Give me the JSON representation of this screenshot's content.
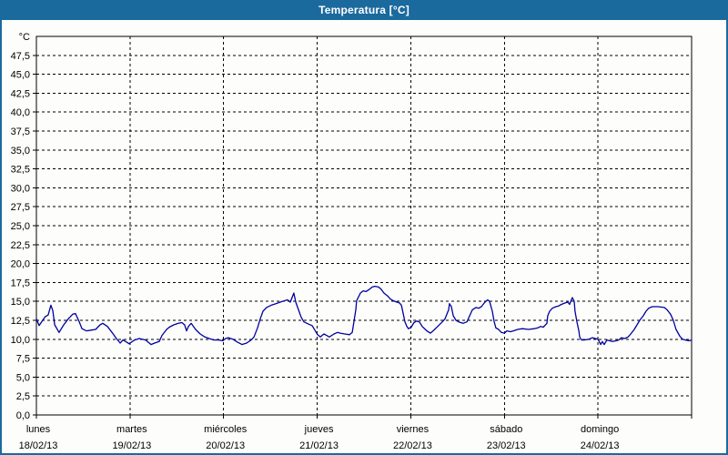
{
  "window": {
    "title": "Temperatura [°C]"
  },
  "colors": {
    "frame": "#1b6a9e",
    "title_text": "#ffffff",
    "plot_background": "#fdfefb",
    "grid": "#000000",
    "series_line": "#0000a0",
    "label_text": "#000000"
  },
  "chart_data": {
    "type": "line",
    "title": "Temperatura [°C]",
    "grid": "dashed",
    "legend": "none",
    "y_axis": {
      "unit_label": "°C",
      "min": 0,
      "max": 50,
      "tick_step": 2.5,
      "tick_labels": [
        "0,0",
        "2,5",
        "5,0",
        "7,5",
        "10,0",
        "12,5",
        "15,0",
        "17,5",
        "20,0",
        "22,5",
        "25,0",
        "27,5",
        "30,0",
        "32,5",
        "35,0",
        "37,5",
        "40,0",
        "42,5",
        "45,0",
        "47,5"
      ]
    },
    "x_axis": {
      "hours_total": 168,
      "days": [
        {
          "name": "lunes",
          "date": "18/02/13"
        },
        {
          "name": "martes",
          "date": "19/02/13"
        },
        {
          "name": "miércoles",
          "date": "20/02/13"
        },
        {
          "name": "jueves",
          "date": "21/02/13"
        },
        {
          "name": "viernes",
          "date": "22/02/13"
        },
        {
          "name": "sábado",
          "date": "23/02/13"
        },
        {
          "name": "domingo",
          "date": "24/02/13"
        }
      ]
    },
    "series": [
      {
        "name": "Temperatura",
        "unit": "°C",
        "points_hours_value": [
          [
            0,
            12.7
          ],
          [
            0.7,
            11.8
          ],
          [
            1.6,
            12.5
          ],
          [
            2.3,
            13.0
          ],
          [
            3.0,
            13.2
          ],
          [
            3.7,
            14.5
          ],
          [
            4.2,
            13.8
          ],
          [
            4.7,
            11.9
          ],
          [
            5.8,
            10.9
          ],
          [
            7.0,
            11.9
          ],
          [
            8.2,
            12.7
          ],
          [
            9.3,
            13.3
          ],
          [
            10.0,
            13.4
          ],
          [
            11.0,
            12.3
          ],
          [
            11.7,
            11.4
          ],
          [
            12.8,
            11.1
          ],
          [
            14.0,
            11.2
          ],
          [
            15.2,
            11.3
          ],
          [
            16.3,
            11.9
          ],
          [
            17.0,
            12.1
          ],
          [
            18.2,
            11.7
          ],
          [
            19.4,
            10.9
          ],
          [
            20.5,
            10.1
          ],
          [
            21.5,
            9.5
          ],
          [
            22.2,
            9.9
          ],
          [
            22.9,
            9.7
          ],
          [
            23.8,
            9.4
          ],
          [
            24.0,
            9.5
          ],
          [
            25.2,
            9.9
          ],
          [
            26.4,
            10.1
          ],
          [
            28.0,
            9.9
          ],
          [
            29.4,
            9.3
          ],
          [
            30.3,
            9.5
          ],
          [
            31.5,
            9.7
          ],
          [
            32.2,
            10.5
          ],
          [
            33.4,
            11.3
          ],
          [
            34.1,
            11.6
          ],
          [
            35.2,
            11.9
          ],
          [
            36.4,
            12.1
          ],
          [
            37.3,
            12.2
          ],
          [
            38.0,
            11.9
          ],
          [
            38.5,
            11.1
          ],
          [
            39.0,
            11.7
          ],
          [
            39.7,
            12.1
          ],
          [
            40.8,
            11.3
          ],
          [
            42.0,
            10.7
          ],
          [
            43.2,
            10.3
          ],
          [
            44.3,
            10.1
          ],
          [
            45.5,
            9.9
          ],
          [
            46.7,
            9.9
          ],
          [
            47.8,
            9.8
          ],
          [
            48.5,
            10.1
          ],
          [
            49.2,
            10.2
          ],
          [
            50.4,
            10.0
          ],
          [
            51.6,
            9.6
          ],
          [
            52.7,
            9.3
          ],
          [
            53.9,
            9.5
          ],
          [
            55.1,
            9.9
          ],
          [
            55.8,
            10.3
          ],
          [
            56.7,
            11.5
          ],
          [
            57.4,
            12.7
          ],
          [
            58.1,
            13.7
          ],
          [
            59.0,
            14.2
          ],
          [
            60.2,
            14.5
          ],
          [
            61.4,
            14.7
          ],
          [
            62.5,
            14.9
          ],
          [
            63.7,
            15.1
          ],
          [
            64.4,
            15.2
          ],
          [
            65.1,
            14.9
          ],
          [
            66.0,
            16.1
          ],
          [
            66.5,
            14.9
          ],
          [
            67.2,
            13.9
          ],
          [
            67.9,
            12.9
          ],
          [
            68.6,
            12.3
          ],
          [
            69.8,
            12.0
          ],
          [
            70.7,
            11.8
          ],
          [
            71.4,
            11.2
          ],
          [
            72.1,
            10.6
          ],
          [
            72.8,
            10.3
          ],
          [
            73.7,
            10.7
          ],
          [
            74.4,
            10.5
          ],
          [
            75.1,
            10.3
          ],
          [
            76.3,
            10.7
          ],
          [
            77.2,
            10.9
          ],
          [
            77.9,
            10.8
          ],
          [
            79.1,
            10.7
          ],
          [
            80.3,
            10.6
          ],
          [
            81.0,
            10.9
          ],
          [
            81.4,
            12.3
          ],
          [
            81.9,
            13.9
          ],
          [
            82.1,
            15.1
          ],
          [
            83.1,
            16.1
          ],
          [
            83.8,
            16.4
          ],
          [
            84.5,
            16.3
          ],
          [
            85.4,
            16.6
          ],
          [
            86.1,
            16.9
          ],
          [
            86.8,
            17.0
          ],
          [
            87.7,
            16.9
          ],
          [
            88.4,
            16.6
          ],
          [
            89.1,
            16.1
          ],
          [
            90.1,
            15.7
          ],
          [
            90.8,
            15.3
          ],
          [
            91.5,
            15.1
          ],
          [
            92.4,
            14.9
          ],
          [
            93.1,
            14.8
          ],
          [
            93.6,
            14.5
          ],
          [
            94.0,
            13.5
          ],
          [
            94.5,
            12.3
          ],
          [
            95.0,
            11.7
          ],
          [
            95.4,
            11.4
          ],
          [
            96.1,
            11.6
          ],
          [
            96.8,
            12.2
          ],
          [
            97.5,
            12.4
          ],
          [
            98.2,
            12.3
          ],
          [
            98.9,
            11.7
          ],
          [
            100.1,
            11.1
          ],
          [
            101.0,
            10.8
          ],
          [
            101.7,
            11.1
          ],
          [
            102.9,
            11.7
          ],
          [
            104.1,
            12.3
          ],
          [
            104.8,
            12.7
          ],
          [
            105.7,
            13.9
          ],
          [
            105.9,
            14.7
          ],
          [
            106.4,
            14.3
          ],
          [
            106.9,
            13.1
          ],
          [
            107.6,
            12.5
          ],
          [
            108.3,
            12.3
          ],
          [
            109.4,
            12.1
          ],
          [
            110.4,
            12.3
          ],
          [
            111.1,
            13.1
          ],
          [
            111.8,
            13.9
          ],
          [
            112.7,
            14.2
          ],
          [
            113.4,
            14.1
          ],
          [
            114.1,
            14.3
          ],
          [
            115.0,
            14.9
          ],
          [
            115.7,
            15.2
          ],
          [
            116.2,
            15.0
          ],
          [
            116.9,
            13.7
          ],
          [
            117.4,
            12.3
          ],
          [
            117.8,
            11.5
          ],
          [
            118.5,
            11.3
          ],
          [
            119.2,
            10.9
          ],
          [
            120.0,
            10.8
          ],
          [
            120.6,
            11.1
          ],
          [
            121.6,
            11.0
          ],
          [
            122.3,
            11.1
          ],
          [
            123.4,
            11.3
          ],
          [
            124.6,
            11.4
          ],
          [
            126.2,
            11.3
          ],
          [
            127.6,
            11.4
          ],
          [
            128.6,
            11.5
          ],
          [
            129.3,
            11.7
          ],
          [
            130.0,
            11.6
          ],
          [
            130.9,
            12.1
          ],
          [
            131.1,
            13.1
          ],
          [
            131.6,
            13.7
          ],
          [
            132.3,
            14.1
          ],
          [
            133.2,
            14.3
          ],
          [
            133.9,
            14.4
          ],
          [
            134.6,
            14.6
          ],
          [
            135.6,
            14.8
          ],
          [
            136.3,
            14.9
          ],
          [
            136.7,
            14.6
          ],
          [
            137.4,
            15.5
          ],
          [
            137.9,
            15.0
          ],
          [
            138.1,
            13.7
          ],
          [
            138.6,
            12.3
          ],
          [
            139.1,
            11.1
          ],
          [
            139.3,
            10.3
          ],
          [
            139.8,
            9.9
          ],
          [
            140.5,
            9.9
          ],
          [
            141.6,
            10.0
          ],
          [
            142.6,
            10.2
          ],
          [
            143.3,
            10.1
          ],
          [
            144.0,
            10.0
          ],
          [
            144.7,
            9.3
          ],
          [
            145.1,
            9.7
          ],
          [
            145.6,
            9.3
          ],
          [
            146.3,
            9.9
          ],
          [
            147.0,
            9.8
          ],
          [
            147.7,
            9.7
          ],
          [
            148.6,
            9.8
          ],
          [
            149.3,
            9.9
          ],
          [
            150.0,
            10.2
          ],
          [
            150.9,
            10.1
          ],
          [
            151.7,
            10.3
          ],
          [
            152.4,
            10.7
          ],
          [
            153.3,
            11.3
          ],
          [
            154.0,
            11.9
          ],
          [
            154.7,
            12.5
          ],
          [
            155.6,
            13.1
          ],
          [
            156.3,
            13.7
          ],
          [
            157.0,
            14.1
          ],
          [
            157.9,
            14.3
          ],
          [
            159.4,
            14.3
          ],
          [
            161.0,
            14.2
          ],
          [
            161.7,
            13.9
          ],
          [
            162.6,
            13.3
          ],
          [
            163.3,
            12.5
          ],
          [
            164.0,
            11.3
          ],
          [
            165.0,
            10.4
          ],
          [
            165.7,
            10.0
          ],
          [
            166.4,
            9.9
          ],
          [
            167.3,
            9.8
          ],
          [
            168.0,
            9.9
          ]
        ]
      }
    ]
  }
}
